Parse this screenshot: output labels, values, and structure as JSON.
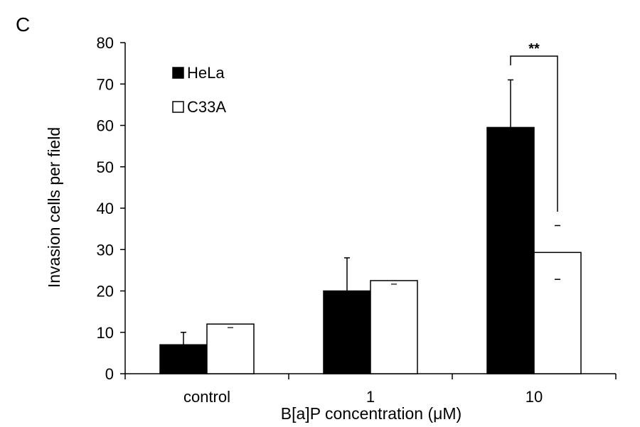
{
  "panel_label": "C",
  "chart_data": {
    "type": "bar",
    "categories": [
      "control",
      "1",
      "10"
    ],
    "series": [
      {
        "name": "HeLa",
        "values": [
          7,
          20,
          59.5
        ],
        "errors": [
          3,
          8,
          11.5
        ],
        "color": "#000000"
      },
      {
        "name": "C33A",
        "values": [
          12,
          22.5,
          29.3
        ],
        "errors": [
          0,
          0,
          6.5
        ],
        "color": "#ffffff"
      }
    ],
    "xlabel": "B[a]P concentration (μM)",
    "ylabel": "Invasion cells per field",
    "ylim": [
      0,
      80
    ],
    "yticks": [
      0,
      10,
      20,
      30,
      40,
      50,
      60,
      70,
      80
    ],
    "legend_position": "top-left",
    "grid": false,
    "annotations": [
      {
        "text": "**",
        "category": "10",
        "between": [
          "HeLa",
          "C33A"
        ]
      }
    ]
  }
}
